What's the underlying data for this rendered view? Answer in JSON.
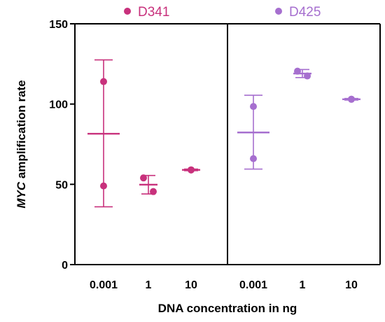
{
  "chart_data": {
    "type": "scatter",
    "xlabel": "DNA concentration in ng",
    "ylabel_italic": "MYC",
    "ylabel_rest": " amplification rate",
    "ylim": [
      0,
      150
    ],
    "yticks": [
      0,
      50,
      100,
      150
    ],
    "categories": [
      "0.001",
      "1",
      "10"
    ],
    "legend_position": "top",
    "grid": false,
    "panels": [
      {
        "series": {
          "name": "D341",
          "color": "#c8317c",
          "groups": [
            {
              "category": "0.001",
              "points": [
                114,
                49
              ],
              "mean": 81.5,
              "error_low": 36,
              "error_high": 127.5
            },
            {
              "category": "1",
              "points": [
                54,
                45.5
              ],
              "mean": 49.8,
              "error_low": 44,
              "error_high": 55.5
            },
            {
              "category": "10",
              "points": [
                59,
                59
              ],
              "mean": 59,
              "error_low": 58.5,
              "error_high": 59.5
            }
          ]
        }
      },
      {
        "series": {
          "name": "D425",
          "color": "#a66fcf",
          "groups": [
            {
              "category": "0.001",
              "points": [
                98.5,
                66
              ],
              "mean": 82.3,
              "error_low": 59.5,
              "error_high": 105.5
            },
            {
              "category": "1",
              "points": [
                120.5,
                117.5
              ],
              "mean": 119,
              "error_low": 116.5,
              "error_high": 121.5
            },
            {
              "category": "10",
              "points": [
                103,
                103
              ],
              "mean": 103,
              "error_low": 102.5,
              "error_high": 103.5
            }
          ]
        }
      }
    ]
  }
}
